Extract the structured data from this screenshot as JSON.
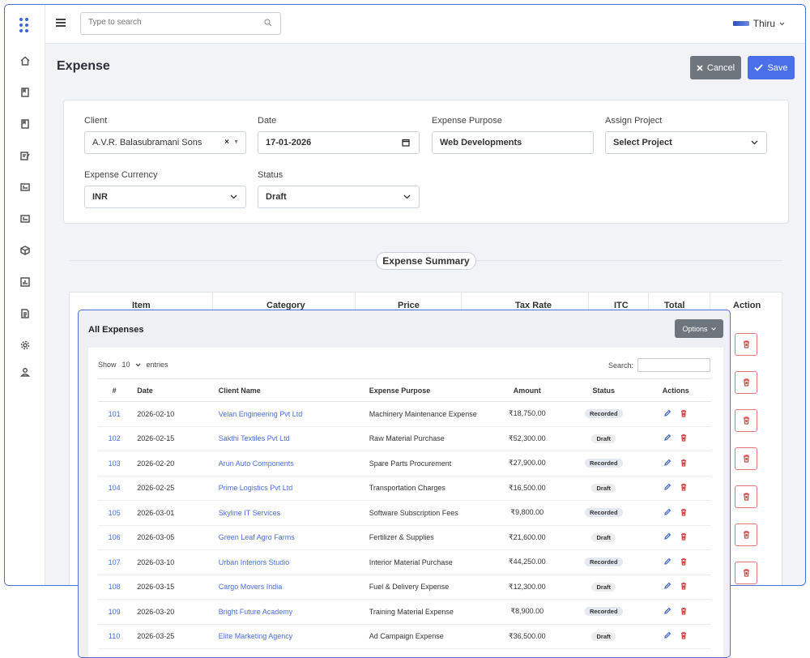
{
  "topbar": {
    "search_placeholder": "Type to search",
    "user_name": "Thiru"
  },
  "page": {
    "title": "Expense",
    "cancel_label": "Cancel",
    "save_label": "Save"
  },
  "form": {
    "client_label": "Client",
    "client_value": "A.V.R. Balasubramani Sons",
    "date_label": "Date",
    "date_value": "17-01-2026",
    "purpose_label": "Expense Purpose",
    "purpose_value": "Web Developments",
    "project_label": "Assign Project",
    "project_value": "Select Project",
    "currency_label": "Expense Currency",
    "currency_value": "INR",
    "status_label": "Status",
    "status_value": "Draft"
  },
  "summary": {
    "title": "Expense Summary",
    "columns": [
      "Item",
      "Category",
      "Price",
      "Tax Rate",
      "ITC",
      "Total",
      "Action"
    ]
  },
  "all_expenses": {
    "title": "All Expenses",
    "options_label": "Options",
    "show_label": "Show",
    "entries_value": "10",
    "entries_label": "entries",
    "search_label": "Search:",
    "columns": [
      "#",
      "Date",
      "Client Name",
      "Expense Purpose",
      "Amount",
      "Status",
      "Actions"
    ],
    "rows": [
      {
        "id": "101",
        "date": "2026-02-10",
        "client": "Velan Engineering Pvt Ltd",
        "purpose": "Machinery Maintenance Expense",
        "amount": "₹18,750.00",
        "status": "Recorded"
      },
      {
        "id": "102",
        "date": "2026-02-15",
        "client": "Sakthi Textiles Pvt Ltd",
        "purpose": "Raw Material Purchase",
        "amount": "₹52,300.00",
        "status": "Draft"
      },
      {
        "id": "103",
        "date": "2026-02-20",
        "client": "Arun Auto Components",
        "purpose": "Spare Parts Procurement",
        "amount": "₹27,900.00",
        "status": "Recorded"
      },
      {
        "id": "104",
        "date": "2026-02-25",
        "client": "Prime Logistics Pvt Ltd",
        "purpose": "Transportation Charges",
        "amount": "₹16,500.00",
        "status": "Draft"
      },
      {
        "id": "105",
        "date": "2026-03-01",
        "client": "Skyline IT Services",
        "purpose": "Software Subscription Fees",
        "amount": "₹9,800.00",
        "status": "Recorded"
      },
      {
        "id": "106",
        "date": "2026-03-05",
        "client": "Green Leaf Agro Farms",
        "purpose": "Fertilizer & Supplies",
        "amount": "₹21,600.00",
        "status": "Draft"
      },
      {
        "id": "107",
        "date": "2026-03-10",
        "client": "Urban Interiors Studio",
        "purpose": "Interior Material Purchase",
        "amount": "₹44,250.00",
        "status": "Recorded"
      },
      {
        "id": "108",
        "date": "2026-03-15",
        "client": "Cargo Movers India",
        "purpose": "Fuel & Delivery Expense",
        "amount": "₹12,300.00",
        "status": "Draft"
      },
      {
        "id": "109",
        "date": "2026-03-20",
        "client": "Bright Future Academy",
        "purpose": "Training Material Expense",
        "amount": "₹8,900.00",
        "status": "Recorded"
      },
      {
        "id": "110",
        "date": "2026-03-25",
        "client": "Elite Marketing Agency",
        "purpose": "Ad Campaign Expense",
        "amount": "₹36,500.00",
        "status": "Draft"
      }
    ]
  },
  "icons": {
    "sidebar": [
      "home-icon",
      "book-icon",
      "bookmark-icon",
      "edit-note-icon",
      "card-icon",
      "card-icon",
      "box-icon",
      "chart-icon",
      "document-icon",
      "gear-icon",
      "user-icon"
    ]
  },
  "colors": {
    "primary": "#4a6fe8",
    "secondary": "#6f757d",
    "danger": "#d64545",
    "link": "#4a6fd8"
  }
}
